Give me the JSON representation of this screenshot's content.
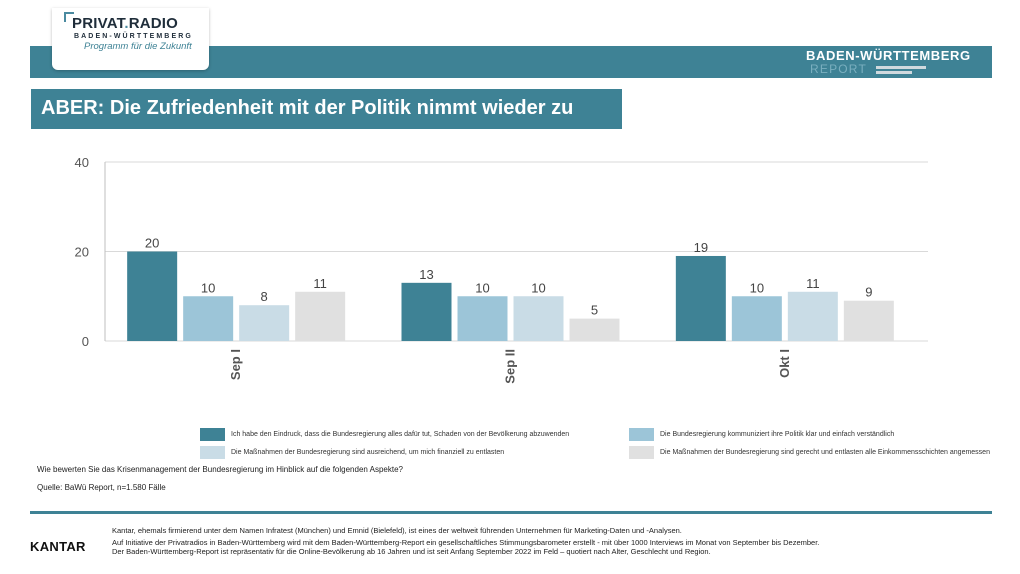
{
  "brand": {
    "logo_name": "PRIVAT",
    "logo_dot": ".",
    "logo_name2": "RADIO",
    "logo_sub": "BADEN-WÜRTTEMBERG",
    "logo_tagline": "Programm für die Zukunft",
    "report_title": "BADEN-WÜRTTEMBERG",
    "report_sub": "REPORT"
  },
  "headline": "ABER: Die Zufriedenheit mit der Politik nimmt wieder zu",
  "chart_data": {
    "type": "bar",
    "categories": [
      "Sep I",
      "Sep II",
      "Okt I"
    ],
    "ylim": [
      0,
      40
    ],
    "yticks": [
      0,
      20,
      40
    ],
    "grid": true,
    "series": [
      {
        "name": "Ich habe den Eindruck, dass die Bundesregierung alles dafür tut, Schaden von der Bevölkerung abzuwenden",
        "values": [
          20,
          13,
          19
        ],
        "color": "#3e8295"
      },
      {
        "name": "Die Bundesregierung kommuniziert ihre Politik klar und einfach verständlich",
        "values": [
          10,
          10,
          10
        ],
        "color": "#9cc5d8"
      },
      {
        "name": "Die Maßnahmen der Bundesregierung sind ausreichend, um mich finanziell zu entlasten",
        "values": [
          8,
          10,
          11
        ],
        "color": "#c9dce6"
      },
      {
        "name": "Die Maßnahmen der Bundesregierung sind gerecht und entlasten alle Einkommensschichten angemessen",
        "values": [
          11,
          5,
          9
        ],
        "color": "#e0e0e0"
      }
    ]
  },
  "question": "Wie bewerten Sie das Krisenmanagement der Bundesregierung im Hinblick auf die folgenden Aspekte?",
  "source": "Quelle: BaWü Report, n=1.580 Fälle",
  "footer": {
    "kantar": "KANTAR",
    "line1": "Kantar, ehemals firmierend unter dem Namen Infratest (München) und Emnid (Bielefeld), ist eines der weltweit führenden Unternehmen für Marketing-Daten und -Analysen.",
    "line2": "Auf Initiative der Privatradios in Baden-Württemberg wird mit dem Baden-Württemberg-Report ein gesellschaftliches Stimmungsbarometer erstellt - mit über 1000 Interviews im Monat von September bis Dezember.",
    "line3": "Der Baden-Württemberg-Report ist repräsentativ für die Online-Bevölkerung ab 16 Jahren und ist seit Anfang September 2022 im Feld – quotiert nach Alter, Geschlecht und Region."
  }
}
